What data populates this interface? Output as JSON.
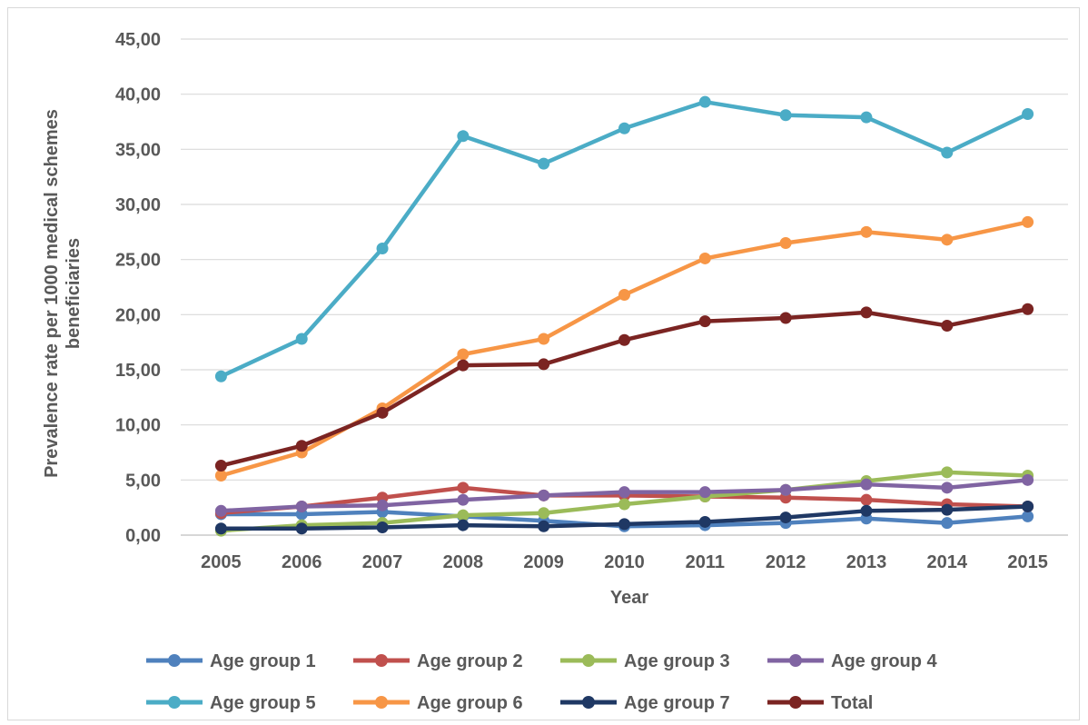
{
  "chart_data": {
    "type": "line",
    "title": "",
    "xlabel": "Year",
    "ylabel_lines": [
      "Prevalence rate  per 1000 medical schemes",
      "beneficiaries"
    ],
    "x": [
      "2005",
      "2006",
      "2007",
      "2008",
      "2009",
      "2010",
      "2011",
      "2012",
      "2013",
      "2014",
      "2015"
    ],
    "ylim": [
      0,
      45
    ],
    "ytick_step": 5,
    "ytick_labels": [
      "0,00",
      "5,00",
      "10,00",
      "15,00",
      "20,00",
      "25,00",
      "30,00",
      "35,00",
      "40,00",
      "45,00"
    ],
    "grid": true,
    "legend_placement": "bottom",
    "series": [
      {
        "name": "Age group 1",
        "color": "#4f81bd",
        "values": [
          1.9,
          1.9,
          2.1,
          1.7,
          1.3,
          0.8,
          0.9,
          1.1,
          1.5,
          1.1,
          1.7
        ]
      },
      {
        "name": "Age group 2",
        "color": "#c0504d",
        "values": [
          2.0,
          2.6,
          3.4,
          4.3,
          3.6,
          3.6,
          3.5,
          3.4,
          3.2,
          2.8,
          2.6
        ]
      },
      {
        "name": "Age group 3",
        "color": "#9bbb59",
        "values": [
          0.4,
          0.9,
          1.1,
          1.8,
          2.0,
          2.8,
          3.5,
          4.1,
          4.9,
          5.7,
          5.4
        ]
      },
      {
        "name": "Age group 4",
        "color": "#8064a2",
        "values": [
          2.2,
          2.6,
          2.7,
          3.2,
          3.6,
          3.9,
          3.9,
          4.1,
          4.6,
          4.3,
          5.0
        ]
      },
      {
        "name": "Age group 5",
        "color": "#4bacc6",
        "values": [
          14.4,
          17.8,
          26.0,
          36.2,
          33.7,
          36.9,
          39.3,
          38.1,
          37.9,
          34.7,
          38.2
        ]
      },
      {
        "name": "Age group 6",
        "color": "#f79646",
        "values": [
          5.4,
          7.5,
          11.5,
          16.4,
          17.8,
          21.8,
          25.1,
          26.5,
          27.5,
          26.8,
          28.4
        ]
      },
      {
        "name": "Age group 7",
        "color": "#1f3864",
        "values": [
          0.6,
          0.6,
          0.7,
          0.9,
          0.8,
          1.0,
          1.2,
          1.6,
          2.2,
          2.3,
          2.6
        ]
      },
      {
        "name": "Total",
        "color": "#7b2422",
        "values": [
          6.3,
          8.1,
          11.1,
          15.4,
          15.5,
          17.7,
          19.4,
          19.7,
          20.2,
          19.0,
          20.5
        ]
      }
    ]
  }
}
